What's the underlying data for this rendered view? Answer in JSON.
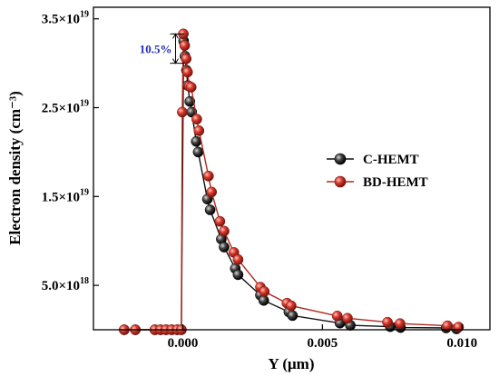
{
  "chart_data": {
    "type": "line",
    "xlabel": "Y (μm)",
    "ylabel": "Electron density (cm⁻³)",
    "xlim": [
      -0.0032,
      0.011
    ],
    "ylim": [
      0,
      3.63e+19
    ],
    "x_ticks": [
      {
        "value": 0.0,
        "label": "0.000"
      },
      {
        "value": 0.005,
        "label": "0.005"
      },
      {
        "value": 0.01,
        "label": "0.010"
      }
    ],
    "y_ticks": [
      {
        "value": 5e+18,
        "mant": "5.0×10",
        "exp": "18"
      },
      {
        "value": 1.5e+19,
        "mant": "1.5×10",
        "exp": "19"
      },
      {
        "value": 2.5e+19,
        "mant": "2.5×10",
        "exp": "19"
      },
      {
        "value": 3.5e+19,
        "mant": "3.5×10",
        "exp": "19"
      }
    ],
    "legend_position": "right-middle",
    "series": [
      {
        "name": "C-HEMT",
        "color": "#111111",
        "points": [
          [
            -0.0021,
            0.0
          ],
          [
            -0.0017,
            0.0
          ],
          [
            -0.001,
            0.0
          ],
          [
            -0.0008,
            0.0
          ],
          [
            -0.0006,
            0.0
          ],
          [
            -0.0004,
            0.0
          ],
          [
            -0.0002,
            0.0
          ],
          [
            -5e-05,
            0.0
          ],
          [
            3e-05,
            3.25e+19
          ],
          [
            8e-05,
            3.08e+19
          ],
          [
            0.00013,
            2.92e+19
          ],
          [
            0.00018,
            2.75e+19
          ],
          [
            0.00025,
            2.57e+19
          ],
          [
            0.00032,
            2.45e+19
          ],
          [
            0.00048,
            2.12e+19
          ],
          [
            0.00055,
            2e+19
          ],
          [
            0.00088,
            1.47e+19
          ],
          [
            0.00098,
            1.35e+19
          ],
          [
            0.00138,
            1.02e+19
          ],
          [
            0.00148,
            9.3e+18
          ],
          [
            0.00188,
            6.9e+18
          ],
          [
            0.00198,
            6.2e+18
          ],
          [
            0.00278,
            3.9e+18
          ],
          [
            0.0029,
            3.3e+18
          ],
          [
            0.0038,
            2e+18
          ],
          [
            0.00393,
            1.6e+18
          ],
          [
            0.00563,
            7.5e+17
          ],
          [
            0.006,
            5e+17
          ],
          [
            0.00743,
            3.5e+17
          ],
          [
            0.0078,
            2.5e+17
          ],
          [
            0.00943,
            2e+17
          ],
          [
            0.0098,
            1e+17
          ]
        ]
      },
      {
        "name": "BD-HEMT",
        "color": "#b0281e",
        "points": [
          [
            -0.0021,
            0.0
          ],
          [
            -0.0017,
            0.0
          ],
          [
            -0.001,
            0.0
          ],
          [
            -0.0008,
            0.0
          ],
          [
            -0.0006,
            0.0
          ],
          [
            -0.0004,
            0.0
          ],
          [
            -0.0002,
            0.0
          ],
          [
            -5e-05,
            0.0
          ],
          [
            -2e-05,
            2.45e+19
          ],
          [
            2e-05,
            3.33e+19
          ],
          [
            7e-05,
            3.2e+19
          ],
          [
            0.00012,
            3.05e+19
          ],
          [
            0.00017,
            2.9e+19
          ],
          [
            0.00023,
            2.74e+19
          ],
          [
            0.0003,
            2.73e+19
          ],
          [
            0.0005,
            2.37e+19
          ],
          [
            0.00058,
            2.24e+19
          ],
          [
            0.00092,
            1.73e+19
          ],
          [
            0.00103,
            1.55e+19
          ],
          [
            0.00133,
            1.22e+19
          ],
          [
            0.00148,
            1.11e+19
          ],
          [
            0.00183,
            8.7e+18
          ],
          [
            0.00198,
            7.9e+18
          ],
          [
            0.00278,
            4.8e+18
          ],
          [
            0.00292,
            4.3e+18
          ],
          [
            0.00373,
            3e+18
          ],
          [
            0.00388,
            2.7e+18
          ],
          [
            0.00553,
            1.55e+18
          ],
          [
            0.0059,
            1.3e+18
          ],
          [
            0.00733,
            8.5e+17
          ],
          [
            0.00778,
            7e+17
          ],
          [
            0.00948,
            4.5e+17
          ],
          [
            0.00988,
            3e+17
          ]
        ]
      }
    ],
    "annotation": {
      "text": "10.5%",
      "upper": 3.33e+19,
      "lower": 3e+19,
      "x": 0.0
    }
  }
}
